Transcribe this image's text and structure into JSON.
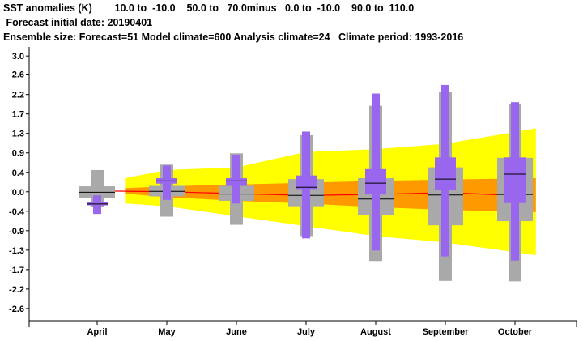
{
  "header": {
    "line1": "SST anomalies (K)        10.0 to  -10.0    50.0 to   70.0minus   0.0 to  -10.0    90.0 to  110.0",
    "line2": " Forecast initial date: 20190401",
    "line3": "Ensemble size: Forecast=51 Model climate=600 Analysis climate=24   Climate period: 1993-2016"
  },
  "colors": {
    "outer_band": "#ffff00",
    "inner_band": "#ff9900",
    "climate_box": "#a9a9a9",
    "forecast_box": "#9966ee",
    "median_line": "#000000",
    "analysis_line": "#ff0000"
  },
  "chart_data": {
    "type": "box",
    "categories": [
      "April",
      "May",
      "June",
      "July",
      "August",
      "September",
      "October"
    ],
    "ylim": [
      -2.85,
      3.2
    ],
    "yticks": [
      "3.0",
      "2.6",
      "2.2",
      "1.7",
      "1.3",
      "0.9",
      "0.4",
      "0.0",
      "-0.4",
      "-0.9",
      "-1.3",
      "-1.7",
      "-2.2",
      "-2.6"
    ],
    "ytick_values": [
      3.0,
      2.6,
      2.15,
      1.72,
      1.29,
      0.86,
      0.43,
      0.0,
      -0.43,
      -0.86,
      -1.29,
      -1.72,
      -2.15,
      -2.58
    ],
    "outer_band": {
      "x": [
        0.4,
        1,
        2,
        3,
        4,
        5,
        6.3
      ],
      "upper": [
        0.3,
        0.48,
        0.54,
        0.88,
        0.94,
        1.06,
        1.4
      ],
      "lower": [
        -0.26,
        -0.32,
        -0.54,
        -0.76,
        -0.98,
        -1.12,
        -1.4
      ]
    },
    "inner_band": {
      "x": [
        0.4,
        1,
        2,
        3,
        4,
        5,
        6.3
      ],
      "upper": [
        0.08,
        0.12,
        0.16,
        0.2,
        0.24,
        0.27,
        0.3
      ],
      "lower": [
        -0.04,
        -0.12,
        -0.2,
        -0.26,
        -0.34,
        -0.4,
        -0.45
      ]
    },
    "analysis_line": {
      "x": [
        0,
        1,
        2,
        3,
        4,
        5,
        6
      ],
      "y": [
        0.02,
        0.0,
        -0.04,
        -0.08,
        -0.06,
        -0.02,
        -0.08
      ]
    },
    "climate_boxes": [
      {
        "whisker_low": -0.34,
        "box_low": -0.14,
        "median": -0.01,
        "box_high": 0.12,
        "whisker_high": 0.48
      },
      {
        "whisker_low": -0.55,
        "box_low": -0.1,
        "median": 0.01,
        "box_high": 0.13,
        "whisker_high": 0.6
      },
      {
        "whisker_low": -0.73,
        "box_low": -0.2,
        "median": -0.05,
        "box_high": 0.13,
        "whisker_high": 0.85
      },
      {
        "whisker_low": -0.98,
        "box_low": -0.32,
        "median": -0.08,
        "box_high": 0.28,
        "whisker_high": 1.25
      },
      {
        "whisker_low": -1.53,
        "box_low": -0.52,
        "median": -0.16,
        "box_high": 0.3,
        "whisker_high": 1.9
      },
      {
        "whisker_low": -1.97,
        "box_low": -0.74,
        "median": -0.07,
        "box_high": 0.54,
        "whisker_high": 2.2
      },
      {
        "whisker_low": -1.98,
        "box_low": -0.65,
        "median": -0.06,
        "box_high": 0.75,
        "whisker_high": 1.93
      }
    ],
    "forecast_boxes": [
      {
        "whisker_low": -0.49,
        "box_low": -0.3,
        "median": -0.27,
        "box_high": -0.23,
        "whisker_high": -0.08
      },
      {
        "whisker_low": -0.18,
        "box_low": 0.18,
        "median": 0.24,
        "box_high": 0.3,
        "whisker_high": 0.58
      },
      {
        "whisker_low": -0.26,
        "box_low": 0.13,
        "median": 0.24,
        "box_high": 0.3,
        "whisker_high": 0.82
      },
      {
        "whisker_low": -1.03,
        "box_low": 0.06,
        "median": 0.1,
        "box_high": 0.36,
        "whisker_high": 1.33
      },
      {
        "whisker_low": -1.3,
        "box_low": -0.06,
        "median": 0.19,
        "box_high": 0.5,
        "whisker_high": 2.17
      },
      {
        "whisker_low": -1.43,
        "box_low": 0.05,
        "median": 0.28,
        "box_high": 0.76,
        "whisker_high": 2.36
      },
      {
        "whisker_low": -1.52,
        "box_low": -0.25,
        "median": 0.39,
        "box_high": 0.76,
        "whisker_high": 1.98
      }
    ]
  }
}
